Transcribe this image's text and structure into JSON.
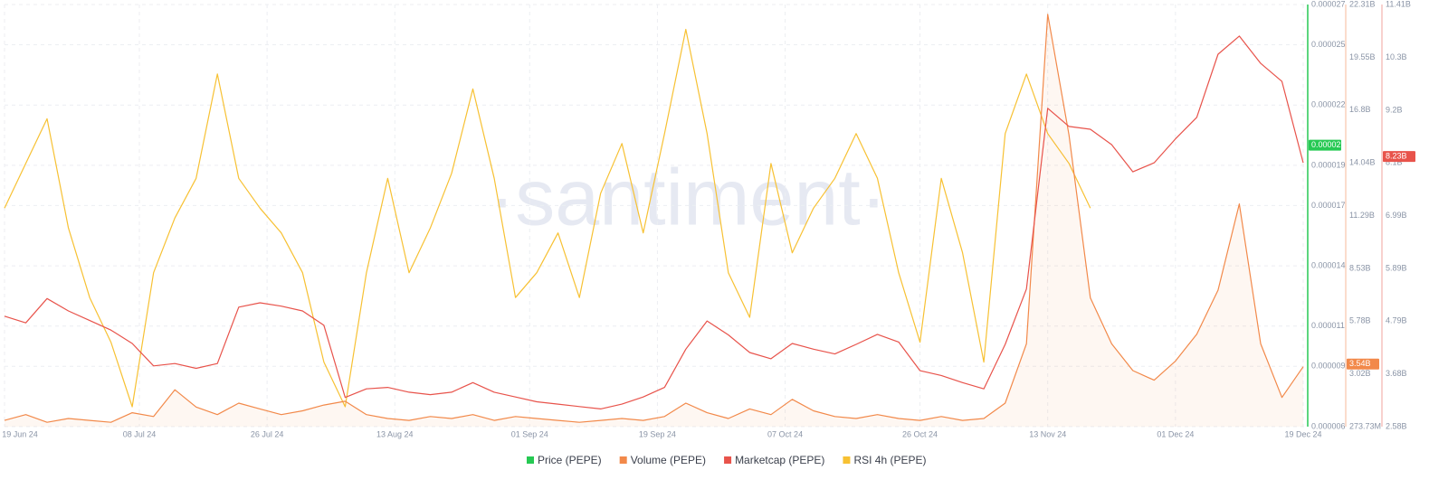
{
  "chart_data": {
    "type": "line",
    "watermark": "·santiment·",
    "x": [
      "2024-06-19",
      "2024-06-22",
      "2024-06-25",
      "2024-06-28",
      "2024-07-01",
      "2024-07-04",
      "2024-07-07",
      "2024-07-10",
      "2024-07-13",
      "2024-07-16",
      "2024-07-19",
      "2024-07-22",
      "2024-07-25",
      "2024-07-28",
      "2024-07-31",
      "2024-08-03",
      "2024-08-06",
      "2024-08-09",
      "2024-08-12",
      "2024-08-15",
      "2024-08-18",
      "2024-08-21",
      "2024-08-24",
      "2024-08-27",
      "2024-08-30",
      "2024-09-02",
      "2024-09-05",
      "2024-09-08",
      "2024-09-11",
      "2024-09-14",
      "2024-09-17",
      "2024-09-20",
      "2024-09-23",
      "2024-09-26",
      "2024-09-29",
      "2024-10-02",
      "2024-10-05",
      "2024-10-08",
      "2024-10-11",
      "2024-10-14",
      "2024-10-17",
      "2024-10-20",
      "2024-10-23",
      "2024-10-26",
      "2024-10-29",
      "2024-11-01",
      "2024-11-04",
      "2024-11-07",
      "2024-11-10",
      "2024-11-13",
      "2024-11-16",
      "2024-11-19",
      "2024-11-22",
      "2024-11-25",
      "2024-11-28",
      "2024-12-01",
      "2024-12-04",
      "2024-12-07",
      "2024-12-10",
      "2024-12-13",
      "2024-12-16",
      "2024-12-19"
    ],
    "xlim": [
      "2024-06-19",
      "2024-12-19"
    ],
    "xticks": [
      {
        "value": "2024-06-19",
        "label": "19 Jun 24"
      },
      {
        "value": "2024-07-08",
        "label": "08 Jul 24"
      },
      {
        "value": "2024-07-26",
        "label": "26 Jul 24"
      },
      {
        "value": "2024-08-13",
        "label": "13 Aug 24"
      },
      {
        "value": "2024-09-01",
        "label": "01 Sep 24"
      },
      {
        "value": "2024-09-19",
        "label": "19 Sep 24"
      },
      {
        "value": "2024-10-07",
        "label": "07 Oct 24"
      },
      {
        "value": "2024-10-26",
        "label": "26 Oct 24"
      },
      {
        "value": "2024-11-13",
        "label": "13 Nov 24"
      },
      {
        "value": "2024-12-01",
        "label": "01 Dec 24"
      },
      {
        "value": "2024-12-19",
        "label": "19 Dec 24"
      }
    ],
    "ylim": [
      6e-06,
      2.7e-05
    ],
    "yticks": [
      2.7e-05,
      2.5e-05,
      2.2e-05,
      1.9e-05,
      1.7e-05,
      1.4e-05,
      1.1e-05,
      9e-06,
      6e-06
    ],
    "y2lim": [
      273730000,
      22310000000
    ],
    "y2ticks": [
      {
        "value": 22310000000,
        "label": "22.31B"
      },
      {
        "value": 19550000000,
        "label": "19.55B"
      },
      {
        "value": 16800000000,
        "label": "16.8B"
      },
      {
        "value": 14040000000,
        "label": "14.04B"
      },
      {
        "value": 11290000000,
        "label": "11.29B"
      },
      {
        "value": 8530000000,
        "label": "8.53B"
      },
      {
        "value": 5780000000,
        "label": "5.78B"
      },
      {
        "value": 3020000000,
        "label": "3.02B"
      },
      {
        "value": 273730000,
        "label": "273.73M"
      }
    ],
    "y3lim": [
      2580000000,
      11410000000
    ],
    "y3ticks": [
      {
        "value": 11410000000,
        "label": "11.41B"
      },
      {
        "value": 10300000000,
        "label": "10.3B"
      },
      {
        "value": 9200000000,
        "label": "9.2B"
      },
      {
        "value": 8100000000,
        "label": "8.1B"
      },
      {
        "value": 6990000000,
        "label": "6.99B"
      },
      {
        "value": 5890000000,
        "label": "5.89B"
      },
      {
        "value": 4790000000,
        "label": "4.79B"
      },
      {
        "value": 3680000000,
        "label": "3.68B"
      },
      {
        "value": 2580000000,
        "label": "2.58B"
      }
    ],
    "y4lim": [
      10,
      95
    ],
    "grid": true,
    "legend": "bottom",
    "series": [
      {
        "name": "Price (PEPE)",
        "color": "#26c953",
        "axis": "y",
        "current": 2e-05
      },
      {
        "name": "Volume (PEPE)",
        "color": "#f2894a",
        "axis": "y2",
        "current": {
          "value": 3540000000,
          "label": "3.54B"
        },
        "values": [
          600000000,
          900000000,
          500000000,
          700000000,
          600000000,
          500000000,
          1000000000,
          800000000,
          2200000000,
          1300000000,
          900000000,
          1500000000,
          1200000000,
          900000000,
          1100000000,
          1400000000,
          1600000000,
          900000000,
          700000000,
          600000000,
          800000000,
          700000000,
          900000000,
          600000000,
          800000000,
          700000000,
          600000000,
          500000000,
          600000000,
          700000000,
          600000000,
          800000000,
          1500000000,
          1000000000,
          700000000,
          1200000000,
          900000000,
          1700000000,
          1100000000,
          800000000,
          700000000,
          900000000,
          700000000,
          600000000,
          800000000,
          600000000,
          700000000,
          1500000000,
          4600000000,
          21800000000,
          15500000000,
          7000000000,
          4600000000,
          3200000000,
          2700000000,
          3700000000,
          5100000000,
          7400000000,
          11900000000,
          4600000000,
          1800000000,
          3400000000
        ]
      },
      {
        "name": "Marketcap (PEPE)",
        "color": "#e8534b",
        "axis": "y3",
        "current": {
          "value": 8230000000,
          "label": "8.23B"
        },
        "values": [
          4890000000,
          4750000000,
          5260000000,
          5000000000,
          4800000000,
          4600000000,
          4320000000,
          3850000000,
          3900000000,
          3800000000,
          3900000000,
          5080000000,
          5170000000,
          5100000000,
          5000000000,
          4700000000,
          3190000000,
          3370000000,
          3400000000,
          3300000000,
          3250000000,
          3300000000,
          3500000000,
          3300000000,
          3200000000,
          3100000000,
          3050000000,
          3000000000,
          2950000000,
          3050000000,
          3200000000,
          3400000000,
          4200000000,
          4790000000,
          4500000000,
          4130000000,
          4000000000,
          4320000000,
          4200000000,
          4100000000,
          4300000000,
          4510000000,
          4350000000,
          3750000000,
          3650000000,
          3500000000,
          3370000000,
          4300000000,
          5460000000,
          9240000000,
          8860000000,
          8800000000,
          8480000000,
          7910000000,
          8100000000,
          8600000000,
          9050000000,
          10370000000,
          10750000000,
          10180000000,
          9800000000,
          8100000000
        ]
      },
      {
        "name": "RSI 4h (PEPE)",
        "color": "#f7c133",
        "axis": "y4",
        "values": [
          54,
          63,
          72,
          50,
          36,
          27,
          14,
          41,
          52,
          60,
          81,
          60,
          54,
          49,
          41,
          23,
          14,
          41,
          60,
          41,
          50,
          61,
          78,
          60,
          36,
          41,
          49,
          36,
          57,
          67,
          49,
          69,
          90,
          69,
          41,
          32,
          63,
          45,
          54,
          60,
          69,
          60,
          41,
          27,
          60,
          45,
          23,
          69,
          81,
          69,
          63,
          54,
          null,
          null,
          null,
          null,
          null,
          null,
          null,
          null,
          null,
          null
        ]
      }
    ]
  }
}
